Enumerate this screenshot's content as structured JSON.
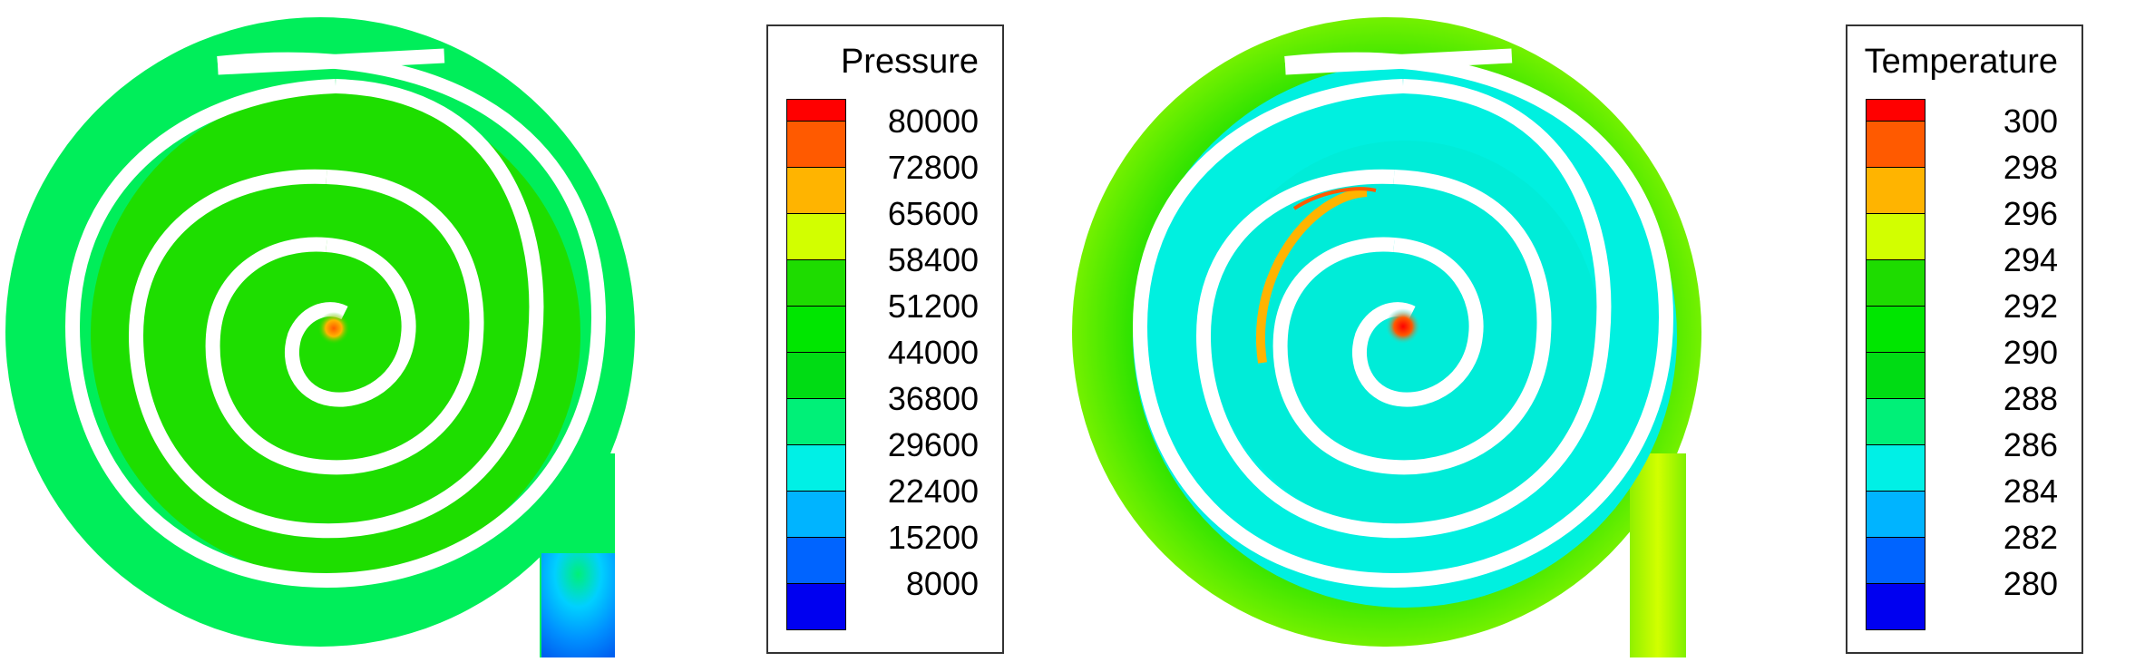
{
  "pressure": {
    "title": "Pressure",
    "levels": [
      "80000",
      "72800",
      "65600",
      "58400",
      "51200",
      "44000",
      "36800",
      "29600",
      "22400",
      "15200",
      "8000"
    ],
    "colors": [
      "#ff0000",
      "#ff5a00",
      "#ffb400",
      "#d2ff00",
      "#1edc00",
      "#00e600",
      "#00dc14",
      "#00f078",
      "#00f0e6",
      "#00b4ff",
      "#0064ff",
      "#0000f0"
    ]
  },
  "temperature": {
    "title": "Temperature",
    "levels": [
      "300",
      "298",
      "296",
      "294",
      "292",
      "290",
      "288",
      "286",
      "284",
      "282",
      "280"
    ],
    "colors": [
      "#ff0000",
      "#ff5a00",
      "#ffb400",
      "#d2ff00",
      "#1edc00",
      "#00e600",
      "#00dc14",
      "#00f078",
      "#00f0e6",
      "#00b4ff",
      "#0064ff",
      "#0000f0"
    ]
  }
}
